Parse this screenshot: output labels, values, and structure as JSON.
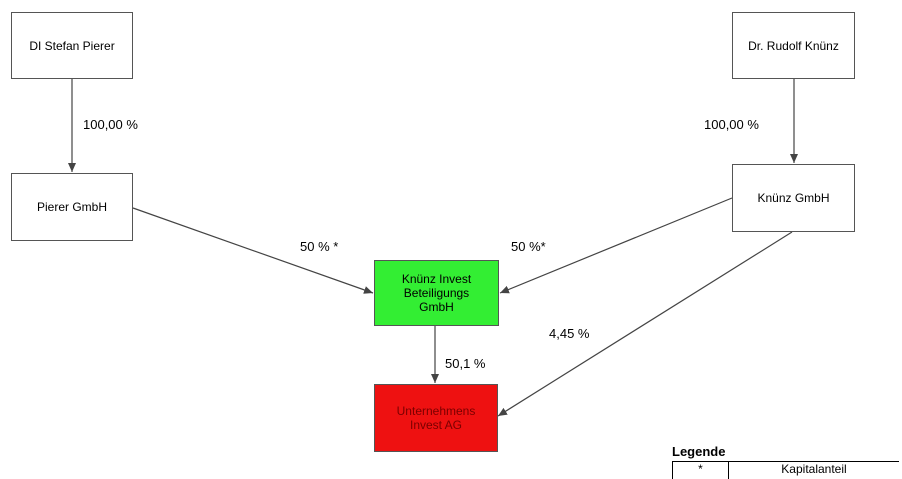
{
  "nodes": {
    "stefan_pierer": "DI Stefan Pierer",
    "rudolf_knuenz": "Dr. Rudolf Knünz",
    "pierer_gmbh": "Pierer GmbH",
    "knuenz_gmbh": "Knünz GmbH",
    "knuenz_invest": [
      "Knünz Invest",
      "Beteiligungs",
      "GmbH"
    ],
    "unternehmens_invest": [
      "Unternehmens",
      "Invest AG"
    ]
  },
  "edges": {
    "stefan_to_pierer": "100,00 %",
    "rudolf_to_knuenz": "100,00 %",
    "pierer_to_invest": "50 % *",
    "knuenz_to_invest": "50 %*",
    "invest_to_ag": "50,1 %",
    "knuenz_to_ag": "4,45 %"
  },
  "legend": {
    "title": "Legende",
    "rows": [
      {
        "symbol": "*",
        "description": "Kapitalanteil"
      }
    ]
  },
  "colors": {
    "knuenz_invest_fill": "#33ee33",
    "unternehmens_invest_fill": "#ee1111",
    "unternehmens_invest_text": "#7a0000",
    "box_border": "#555555",
    "line": "#444444"
  }
}
